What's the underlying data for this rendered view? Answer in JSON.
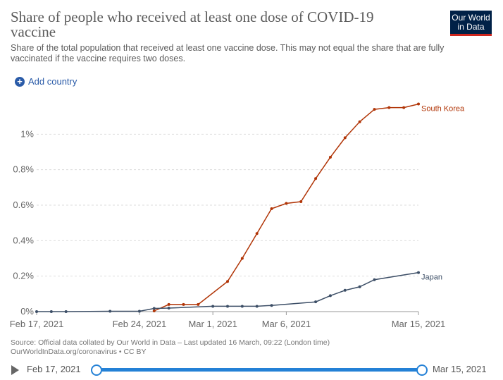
{
  "header": {
    "title": "Share of people who received at least one dose of COVID-19 vaccine",
    "subtitle": "Share of the total population that received at least one vaccine dose. This may not equal the share that are fully vaccinated if the vaccine requires two doses.",
    "logo_line1": "Our World",
    "logo_line2": "in Data"
  },
  "controls": {
    "add_country_label": "Add country",
    "add_icon": "+"
  },
  "chart_data": {
    "type": "line",
    "title": "Share of people who received at least one dose of COVID-19 vaccine",
    "xlabel": "",
    "ylabel": "",
    "ylim": [
      0,
      1.2
    ],
    "x_start": "2021-02-17",
    "x_end": "2021-03-15",
    "x_ticks": [
      {
        "day": 0,
        "label": "Feb 17, 2021"
      },
      {
        "day": 7,
        "label": "Feb 24, 2021"
      },
      {
        "day": 12,
        "label": "Mar 1, 2021"
      },
      {
        "day": 17,
        "label": "Mar 6, 2021"
      },
      {
        "day": 26,
        "label": "Mar 15, 2021"
      }
    ],
    "y_ticks": [
      {
        "value": 0,
        "label": "0%"
      },
      {
        "value": 0.2,
        "label": "0.2%"
      },
      {
        "value": 0.4,
        "label": "0.4%"
      },
      {
        "value": 0.6,
        "label": "0.6%"
      },
      {
        "value": 0.8,
        "label": "0.8%"
      },
      {
        "value": 1.0,
        "label": "1%"
      }
    ],
    "series": [
      {
        "name": "South Korea",
        "color": "#b13507",
        "points": [
          [
            8,
            0.004
          ],
          [
            9,
            0.04
          ],
          [
            10,
            0.04
          ],
          [
            11,
            0.04
          ],
          [
            13,
            0.17
          ],
          [
            14,
            0.3
          ],
          [
            15,
            0.44
          ],
          [
            16,
            0.58
          ],
          [
            17,
            0.61
          ],
          [
            18,
            0.62
          ],
          [
            19,
            0.75
          ],
          [
            20,
            0.87
          ],
          [
            21,
            0.98
          ],
          [
            22,
            1.07
          ],
          [
            23,
            1.14
          ],
          [
            24,
            1.15
          ],
          [
            25,
            1.15
          ],
          [
            26,
            1.17
          ]
        ]
      },
      {
        "name": "Japan",
        "color": "#3c4e66",
        "points": [
          [
            0,
            0
          ],
          [
            1,
            0
          ],
          [
            2,
            0
          ],
          [
            5,
            0.002
          ],
          [
            7,
            0.002
          ],
          [
            8,
            0.018
          ],
          [
            9,
            0.02
          ],
          [
            12,
            0.03
          ],
          [
            13,
            0.03
          ],
          [
            14,
            0.03
          ],
          [
            15,
            0.03
          ],
          [
            16,
            0.035
          ],
          [
            19,
            0.055
          ],
          [
            20,
            0.09
          ],
          [
            21,
            0.12
          ],
          [
            22,
            0.14
          ],
          [
            23,
            0.18
          ],
          [
            26,
            0.22
          ]
        ]
      }
    ]
  },
  "footer": {
    "line1": "Source: Official data collated by Our World in Data – Last updated 16 March, 09:22 (London time)",
    "line2": "OurWorldInData.org/coronavirus • CC BY"
  },
  "timeline": {
    "start_label": "Feb 17, 2021",
    "end_label": "Mar 15, 2021",
    "selection_start_fraction": 0,
    "selection_end_fraction": 1
  }
}
